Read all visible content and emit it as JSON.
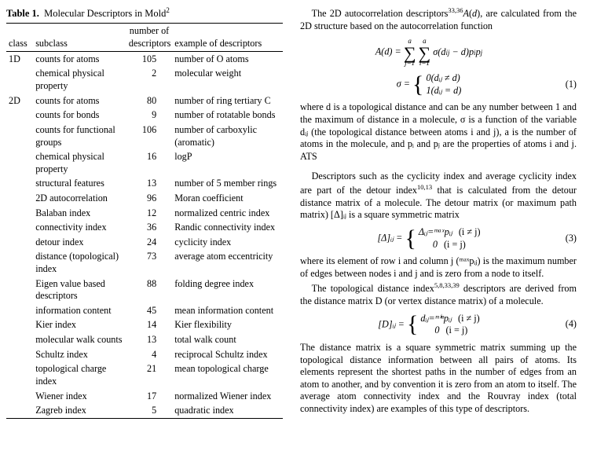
{
  "table": {
    "caption_bold": "Table 1.",
    "caption_text": "Molecular Descriptors in Mold",
    "caption_sup": "2",
    "headers": {
      "class": "class",
      "subclass": "subclass",
      "num": "number of descriptors",
      "example": "example of descriptors"
    },
    "rows": [
      {
        "class": "1D",
        "subclass": "counts for atoms",
        "num": "105",
        "example": "number of O atoms"
      },
      {
        "class": "",
        "subclass": "chemical physical property",
        "num": "2",
        "example": "molecular weight"
      },
      {
        "class": "2D",
        "subclass": "counts for atoms",
        "num": "80",
        "example": "number of ring tertiary C"
      },
      {
        "class": "",
        "subclass": "counts for bonds",
        "num": "9",
        "example": "number of rotatable bonds"
      },
      {
        "class": "",
        "subclass": "counts for functional groups",
        "num": "106",
        "example": "number of carboxylic (aromatic)"
      },
      {
        "class": "",
        "subclass": "chemical physical property",
        "num": "16",
        "example": "logP"
      },
      {
        "class": "",
        "subclass": "structural features",
        "num": "13",
        "example": "number of 5 member rings"
      },
      {
        "class": "",
        "subclass": "2D autocorrelation",
        "num": "96",
        "example": "Moran coefficient"
      },
      {
        "class": "",
        "subclass": "Balaban index",
        "num": "12",
        "example": "normalized centric index"
      },
      {
        "class": "",
        "subclass": "connectivity index",
        "num": "36",
        "example": "Randic connectivity index"
      },
      {
        "class": "",
        "subclass": "detour index",
        "num": "24",
        "example": "cyclicity index"
      },
      {
        "class": "",
        "subclass": "distance (topological) index",
        "num": "73",
        "example": "average atom eccentricity"
      },
      {
        "class": "",
        "subclass": "Eigen value based descriptors",
        "num": "88",
        "example": "folding degree index"
      },
      {
        "class": "",
        "subclass": "information content",
        "num": "45",
        "example": "mean information content"
      },
      {
        "class": "",
        "subclass": "Kier index",
        "num": "14",
        "example": "Kier flexibility"
      },
      {
        "class": "",
        "subclass": "molecular walk counts",
        "num": "13",
        "example": "total walk count"
      },
      {
        "class": "",
        "subclass": "Schultz index",
        "num": "4",
        "example": "reciprocal Schultz index"
      },
      {
        "class": "",
        "subclass": "topological charge index",
        "num": "21",
        "example": "mean topological charge"
      },
      {
        "class": "",
        "subclass": "Wiener index",
        "num": "17",
        "example": "normalized Wiener index"
      },
      {
        "class": "",
        "subclass": "Zagreb index",
        "num": "5",
        "example": "quadratic index"
      }
    ]
  },
  "right": {
    "p1a": "The 2D autocorrelation descriptors",
    "p1ref1": "33,36",
    "p1b": "A(d), are calculated from the 2D structure based on the autocorrelation function",
    "eq1_line1": "A(d) = ∑∑ σ(dᵢⱼ − d)pᵢpⱼ",
    "eq1_sub_j": "j=1",
    "eq1_sub_i": "i=1",
    "eq1_sup": "a",
    "eq1_sigma": "σ =",
    "eq1_case1": "0(dᵢⱼ ≠ d)",
    "eq1_case2": "1(dᵢⱼ = d)",
    "eq1_no": "(1)",
    "p2": "where d is a topological distance and can be any number between 1 and the maximum of distance in a molecule, σ is a function of the variable dᵢⱼ (the topological distance between atoms i and j), a is the number of atoms in the molecule, and pᵢ and pⱼ are the properties of atoms i and j. ATS",
    "p3a": "Descriptors such as the cyclicity index and average cyclicity index are part of the detour index",
    "p3ref": "10,13",
    "p3b": " that is calculated from the detour distance matrix of a molecule. The detour matrix (or maximum path matrix) [Δ]ᵢⱼ is a square symmetric matrix",
    "eq3_lhs": "[Δ]ᵢⱼ =",
    "eq3_case1_l": "Δᵢⱼ=ᵐᵃˣpᵢⱼ",
    "eq3_case1_r": "(i ≠ j)",
    "eq3_case2_l": "0",
    "eq3_case2_r": "(i = j)",
    "eq3_no": "(3)",
    "p4": "where its element of row i and column j (ᵐᵃˣpᵢⱼ) is the maximum number of edges between nodes i and j and is zero from a node to itself.",
    "p5a": "The topological distance index",
    "p5ref": "5,8,33,39",
    "p5b": " descriptors are derived from the distance matrix D (or vertex distance matrix) of a molecule.",
    "eq4_lhs": "[D]ᵢⱼ =",
    "eq4_case1_l": "dᵢⱼ=ᵐⁱⁿpᵢⱼ",
    "eq4_case1_r": "(i ≠ j)",
    "eq4_case2_l": "0",
    "eq4_case2_r": "(i = j)",
    "eq4_no": "(4)",
    "p6": "The distance matrix is a square symmetric matrix summing up the topological distance information between all pairs of atoms. Its elements represent the shortest paths in the number of edges from an atom to another, and by convention it is zero from an atom to itself. The average atom connectivity index and the Rouvray index (total connectivity index) are examples of this type of descriptors."
  }
}
